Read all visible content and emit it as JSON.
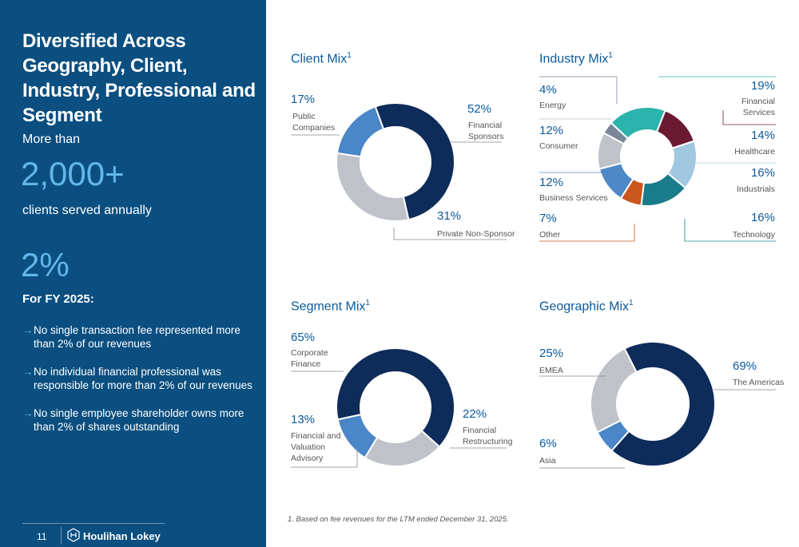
{
  "sidebar": {
    "title": "Diversified Across Geography, Client, Industry, Professional and Segment",
    "more_than": "More than",
    "clients_stat": "2,000+",
    "clients_caption": "clients served annually",
    "pct_stat": "2%",
    "fy_label": "For FY 2025:",
    "bullet_arrow": "→",
    "bullets": [
      "No single transaction fee represented more than 2% of our revenues",
      "No individual financial professional was responsible for more than 2% of our revenues",
      "No single employee shareholder owns more than 2% of shares outstanding"
    ],
    "page_number": "11",
    "logo_text": "Houlihan Lokey"
  },
  "footnote": "1. Based on fee revenues for the LTM ended December 31, 2025.",
  "colors": {
    "navy": "#0e2c5a",
    "light_gray": "#bfc2c9",
    "mid_blue": "#4a86c8",
    "teal": "#2bb3ad",
    "maroon": "#6b1a33",
    "light_blue": "#a2c7e1",
    "dark_teal": "#1a7c8a",
    "orange": "#c9561d",
    "steel_blue": "#4f88c6",
    "slate_gray": "#7a8799"
  },
  "chart_data": [
    {
      "type": "pie",
      "title": "Client Mix",
      "title_sup": "1",
      "categories": [
        "Financial Sponsors",
        "Private Non-Sponsor",
        "Public Companies"
      ],
      "labels": [
        "Financial Sponsors",
        "Private Non-Sponsor",
        "Public Companies"
      ],
      "pct_labels": [
        "52%",
        "31%",
        "17%"
      ],
      "values": [
        52,
        31,
        17
      ],
      "colors": [
        "#0e2c5a",
        "#bfc2c9",
        "#4a86c8"
      ],
      "start_deg": -20
    },
    {
      "type": "pie",
      "title": "Industry Mix",
      "title_sup": "1",
      "categories": [
        "Financial Services",
        "Healthcare",
        "Industrials",
        "Technology",
        "Other",
        "Business Services",
        "Consumer",
        "Energy"
      ],
      "labels": [
        "Financial Services",
        "Healthcare",
        "Industrials",
        "Technology",
        "Other",
        "Business Services",
        "Consumer",
        "Energy"
      ],
      "pct_labels": [
        "19%",
        "14%",
        "16%",
        "16%",
        "7%",
        "12%",
        "12%",
        "4%"
      ],
      "values": [
        19,
        14,
        16,
        16,
        7,
        12,
        12,
        4
      ],
      "colors": [
        "#2bb3ad",
        "#6b1a33",
        "#a2c7e1",
        "#1a7c8a",
        "#c9561d",
        "#4f88c6",
        "#bfc2c9",
        "#7a8799"
      ],
      "start_deg": -47
    },
    {
      "type": "pie",
      "title": "Segment Mix",
      "title_sup": "1",
      "categories": [
        "Corporate Finance",
        "Financial Restructuring",
        "Financial and Valuation Advisory"
      ],
      "labels": [
        "Corporate Finance",
        "Financial Restructuring",
        "Financial and Valuation Advisory"
      ],
      "pct_labels": [
        "65%",
        "22%",
        "13%"
      ],
      "values": [
        65,
        22,
        13
      ],
      "colors": [
        "#0e2c5a",
        "#bfc2c9",
        "#4a86c8"
      ],
      "start_deg": -102
    },
    {
      "type": "pie",
      "title": "Geographic Mix",
      "title_sup": "1",
      "categories": [
        "The Americas",
        "Asia",
        "EMEA"
      ],
      "labels": [
        "The Americas",
        "Asia",
        "EMEA"
      ],
      "pct_labels": [
        "69%",
        "6%",
        "25%"
      ],
      "values": [
        69,
        6,
        25
      ],
      "colors": [
        "#0e2c5a",
        "#4a86c8",
        "#bfc2c9"
      ],
      "start_deg": -27
    }
  ]
}
